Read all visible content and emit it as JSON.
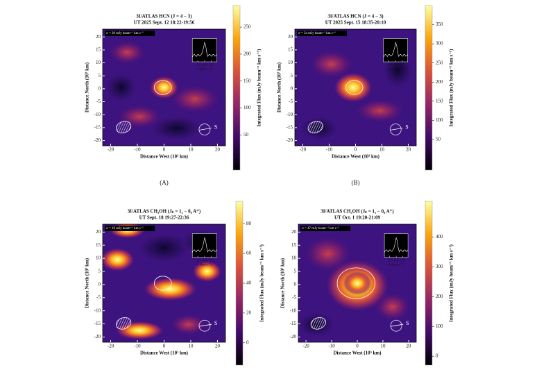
{
  "chart_data": [
    {
      "type": "heatmap",
      "title": "3I/ATLAS HCN (J = 4 − 3)",
      "subtitle": "UT 2025 Sept. 12 18:22-19:56",
      "legend_text": "σ = 20 mJy beam⁻¹ km s⁻¹",
      "caption": "(A)",
      "xlabel": "Distance West (10³ km)",
      "ylabel": "Distance North (10³ km)",
      "colorbar_label": "Integrated Flux (mJy beam⁻¹ km s⁻¹)",
      "xlim": [
        -23,
        23
      ],
      "xticks": [
        -20,
        -10,
        0,
        10,
        20
      ],
      "ylim": [
        -22,
        23
      ],
      "yticks": [
        -20,
        -15,
        -10,
        -5,
        0,
        5,
        10,
        15,
        20
      ],
      "clim": [
        -15,
        290
      ],
      "cticks": [
        50,
        100,
        150,
        200,
        250
      ],
      "direction_label": "S",
      "inset": {
        "xlim": [
          -4.5,
          4.5
        ],
        "xticks": [
          {
            "value": -2.5,
            "label": "−2.5"
          },
          {
            "value": 0,
            "label": "0.0"
          },
          {
            "value": 2.5,
            "label": "2.5"
          }
        ],
        "xlabel": "v (km s⁻¹)"
      }
    },
    {
      "type": "heatmap",
      "title": "3I/ATLAS HCN (J = 4 − 3)",
      "subtitle": "UT 2025 Sept. 15 18:35-20:10",
      "legend_text": "σ = 24 mJy beam⁻¹ km s⁻¹",
      "caption": "(B)",
      "xlabel": "Distance West (10³ km)",
      "ylabel": "Distance North (10³ km)",
      "colorbar_label": "Integrated Flux (mJy beam⁻¹ km s⁻¹)",
      "xlim": [
        -23,
        23
      ],
      "xticks": [
        -20,
        -10,
        0,
        10,
        20
      ],
      "ylim": [
        -22,
        23
      ],
      "yticks": [
        -20,
        -15,
        -10,
        -5,
        0,
        5,
        10,
        15,
        20
      ],
      "clim": [
        -30,
        400
      ],
      "cticks": [
        50,
        100,
        150,
        200,
        250,
        300,
        350
      ],
      "direction_label": "S",
      "inset": {
        "xlim": [
          -4.5,
          4.5
        ],
        "xticks": [
          {
            "value": -2.5,
            "label": "−2.5"
          },
          {
            "value": 0,
            "label": "0.0"
          },
          {
            "value": 2.5,
            "label": "2.5"
          }
        ],
        "xlabel": "v (km s⁻¹)"
      }
    },
    {
      "type": "heatmap",
      "title": "3I/ATLAS CH₃OH (Jₖ = 1₁ − 0₀ A⁺)",
      "subtitle": "UT Sept. 18 19:27-22:36",
      "legend_text": "σ = 19 mJy beam⁻¹ km s⁻¹",
      "xlabel": "Distance West (10³ km)",
      "ylabel": "Distance North (10³ km)",
      "colorbar_label": "Integrated Flux (mJy beam⁻¹ km s⁻¹)",
      "xlim": [
        -23,
        23
      ],
      "xticks": [
        -20,
        -10,
        0,
        10,
        20
      ],
      "ylim": [
        -22,
        23
      ],
      "yticks": [
        -20,
        -15,
        -10,
        -5,
        0,
        5,
        10,
        15,
        20
      ],
      "clim": [
        -15,
        95
      ],
      "cticks": [
        0,
        20,
        40,
        60,
        80
      ],
      "direction_label": "S",
      "inset": {
        "xlim": [
          -4.5,
          4.5
        ],
        "xticks": [
          {
            "value": -2.5,
            "label": "−2.5"
          },
          {
            "value": 0,
            "label": "0.0"
          },
          {
            "value": 2.5,
            "label": "2.5"
          }
        ],
        "xlabel": "v (km s⁻¹)"
      }
    },
    {
      "type": "heatmap",
      "title": "3I/ATLAS CH₃OH (Jₖ = 1₁ − 0₀ A⁺)",
      "subtitle": "UT Oct. 1 19:20-21:09",
      "legend_text": "σ = 47 mJy beam⁻¹ km s⁻¹",
      "xlabel": "Distance West (10³ km)",
      "ylabel": "Distance North (10³ km)",
      "colorbar_label": "Integrated Flux (mJy beam⁻¹ km s⁻¹)",
      "xlim": [
        -23,
        23
      ],
      "xticks": [
        -20,
        -10,
        0,
        10,
        20
      ],
      "ylim": [
        -22,
        23
      ],
      "yticks": [
        -20,
        -15,
        -10,
        -5,
        0,
        5,
        10,
        15,
        20
      ],
      "clim": [
        -30,
        520
      ],
      "cticks": [
        0,
        100,
        200,
        300,
        400
      ],
      "direction_label": "S",
      "inset": {
        "xlim": [
          -4.5,
          4.5
        ],
        "xticks": [
          {
            "value": -2.5,
            "label": "−2.5"
          },
          {
            "value": 0,
            "label": "0.0"
          },
          {
            "value": 2.5,
            "label": "2.5"
          }
        ],
        "xlabel": "v (km s⁻¹)"
      }
    }
  ]
}
